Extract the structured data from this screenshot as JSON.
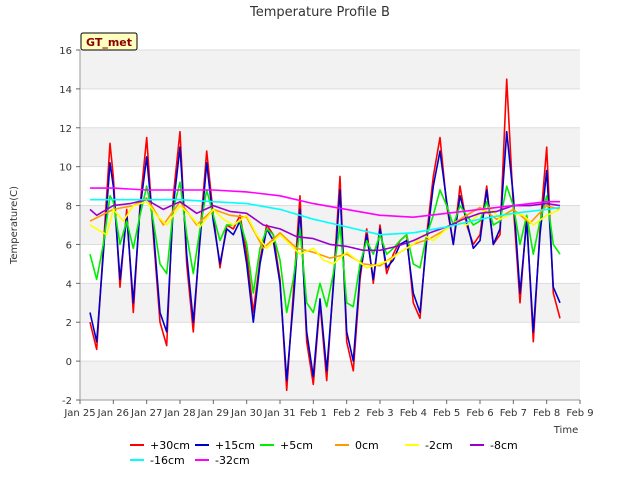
{
  "chart_data": {
    "type": "line",
    "title": "Temperature Profile B",
    "xlabel": "Time",
    "ylabel": "Temperature(C)",
    "ylim": [
      -2,
      16
    ],
    "xlim": [
      0,
      15
    ],
    "yticks": [
      -2,
      0,
      2,
      4,
      6,
      8,
      10,
      12,
      14,
      16
    ],
    "xticks": [
      {
        "x": 0,
        "label": "Jan 25"
      },
      {
        "x": 1,
        "label": "Jan 26"
      },
      {
        "x": 2,
        "label": "Jan 27"
      },
      {
        "x": 3,
        "label": "Jan 28"
      },
      {
        "x": 4,
        "label": "Jan 29"
      },
      {
        "x": 5,
        "label": "Jan 30"
      },
      {
        "x": 6,
        "label": "Jan 31"
      },
      {
        "x": 7,
        "label": "Feb 1"
      },
      {
        "x": 8,
        "label": "Feb 2"
      },
      {
        "x": 9,
        "label": "Feb 3"
      },
      {
        "x": 10,
        "label": "Feb 4"
      },
      {
        "x": 11,
        "label": "Feb 5"
      },
      {
        "x": 12,
        "label": "Feb 6"
      },
      {
        "x": 13,
        "label": "Feb 7"
      },
      {
        "x": 14,
        "label": "Feb 8"
      },
      {
        "x": 15,
        "label": "Feb 9"
      }
    ],
    "grid": "horizontal bands",
    "badge": "GT_met",
    "legend_position": "bottom",
    "series": [
      {
        "name": "+30cm",
        "color": "#ff0000",
        "x": [
          0.3,
          0.5,
          0.7,
          0.9,
          1.0,
          1.2,
          1.4,
          1.6,
          1.8,
          2.0,
          2.2,
          2.4,
          2.6,
          2.8,
          3.0,
          3.2,
          3.4,
          3.6,
          3.8,
          4.0,
          4.2,
          4.4,
          4.6,
          4.8,
          5.0,
          5.2,
          5.4,
          5.6,
          5.8,
          6.0,
          6.2,
          6.4,
          6.6,
          6.8,
          7.0,
          7.2,
          7.4,
          7.6,
          7.8,
          8.0,
          8.2,
          8.4,
          8.6,
          8.8,
          9.0,
          9.2,
          9.4,
          9.6,
          9.8,
          10.0,
          10.2,
          10.4,
          10.6,
          10.8,
          11.0,
          11.2,
          11.4,
          11.6,
          11.8,
          12.0,
          12.2,
          12.4,
          12.6,
          12.8,
          13.0,
          13.2,
          13.4,
          13.6,
          13.8,
          14.0,
          14.2,
          14.4
        ],
        "y": [
          2.0,
          0.6,
          5.8,
          11.2,
          9.5,
          3.8,
          7.8,
          2.5,
          8.0,
          11.5,
          6.5,
          2.0,
          0.8,
          8.5,
          11.8,
          5.0,
          1.5,
          6.5,
          10.8,
          7.5,
          4.8,
          7.0,
          6.8,
          7.5,
          5.5,
          2.5,
          5.2,
          7.0,
          6.5,
          4.2,
          -1.5,
          3.5,
          8.5,
          1.0,
          -1.2,
          3.0,
          -1.0,
          4.0,
          9.5,
          1.0,
          -0.5,
          4.2,
          6.8,
          4.0,
          7.0,
          4.5,
          5.5,
          6.2,
          6.5,
          3.0,
          2.2,
          6.5,
          9.5,
          11.5,
          8.0,
          6.0,
          9.0,
          7.0,
          6.0,
          6.5,
          9.0,
          6.0,
          6.5,
          14.5,
          8.0,
          3.0,
          7.5,
          1.0,
          6.8,
          11.0,
          3.5,
          2.2
        ]
      },
      {
        "name": "+15cm",
        "color": "#0000cc",
        "x": [
          0.3,
          0.5,
          0.7,
          0.9,
          1.0,
          1.2,
          1.4,
          1.6,
          1.8,
          2.0,
          2.2,
          2.4,
          2.6,
          2.8,
          3.0,
          3.2,
          3.4,
          3.6,
          3.8,
          4.0,
          4.2,
          4.4,
          4.6,
          4.8,
          5.0,
          5.2,
          5.4,
          5.6,
          5.8,
          6.0,
          6.2,
          6.4,
          6.6,
          6.8,
          7.0,
          7.2,
          7.4,
          7.6,
          7.8,
          8.0,
          8.2,
          8.4,
          8.6,
          8.8,
          9.0,
          9.2,
          9.4,
          9.6,
          9.8,
          10.0,
          10.2,
          10.4,
          10.6,
          10.8,
          11.0,
          11.2,
          11.4,
          11.6,
          11.8,
          12.0,
          12.2,
          12.4,
          12.6,
          12.8,
          13.0,
          13.2,
          13.4,
          13.6,
          13.8,
          14.0,
          14.2,
          14.4
        ],
        "y": [
          2.5,
          1.0,
          5.5,
          10.2,
          9.0,
          4.2,
          7.5,
          3.0,
          7.8,
          10.5,
          6.8,
          2.5,
          1.5,
          8.0,
          11.0,
          5.5,
          2.0,
          6.2,
          10.2,
          7.2,
          5.0,
          6.8,
          6.5,
          7.2,
          5.0,
          2.0,
          5.0,
          6.8,
          6.2,
          4.0,
          -1.0,
          3.0,
          7.8,
          1.5,
          -0.8,
          3.2,
          -0.5,
          3.8,
          8.8,
          1.5,
          0.0,
          4.5,
          6.5,
          4.2,
          6.8,
          4.8,
          5.2,
          6.0,
          6.2,
          3.5,
          2.5,
          6.2,
          9.0,
          10.8,
          8.2,
          6.0,
          8.5,
          7.2,
          5.8,
          6.2,
          8.8,
          6.0,
          6.8,
          11.8,
          8.5,
          3.5,
          7.2,
          1.5,
          6.5,
          9.8,
          3.8,
          3.0
        ]
      },
      {
        "name": "+5cm",
        "color": "#00ee00",
        "x": [
          0.3,
          0.5,
          0.7,
          0.9,
          1.0,
          1.2,
          1.4,
          1.6,
          1.8,
          2.0,
          2.2,
          2.4,
          2.6,
          2.8,
          3.0,
          3.2,
          3.4,
          3.6,
          3.8,
          4.0,
          4.2,
          4.4,
          4.6,
          4.8,
          5.0,
          5.2,
          5.4,
          5.6,
          5.8,
          6.0,
          6.2,
          6.4,
          6.6,
          6.8,
          7.0,
          7.2,
          7.4,
          7.6,
          7.8,
          8.0,
          8.2,
          8.4,
          8.6,
          8.8,
          9.0,
          9.2,
          9.4,
          9.6,
          9.8,
          10.0,
          10.2,
          10.4,
          10.6,
          10.8,
          11.0,
          11.2,
          11.4,
          11.6,
          11.8,
          12.0,
          12.2,
          12.4,
          12.6,
          12.8,
          13.0,
          13.2,
          13.4,
          13.6,
          13.8,
          14.0,
          14.2,
          14.4
        ],
        "y": [
          5.5,
          4.2,
          6.0,
          8.5,
          8.2,
          6.0,
          7.2,
          5.8,
          7.5,
          9.0,
          7.2,
          5.0,
          4.5,
          7.8,
          9.2,
          6.5,
          4.5,
          6.8,
          8.8,
          7.5,
          6.2,
          7.0,
          7.0,
          7.2,
          6.0,
          3.5,
          5.8,
          6.8,
          6.5,
          5.2,
          2.5,
          4.2,
          6.8,
          3.0,
          2.5,
          4.0,
          2.8,
          4.5,
          7.0,
          3.0,
          2.8,
          5.0,
          6.2,
          5.5,
          6.5,
          5.5,
          5.8,
          6.2,
          6.5,
          5.0,
          4.8,
          6.5,
          7.5,
          8.8,
          8.0,
          7.0,
          8.0,
          7.5,
          7.0,
          7.2,
          8.2,
          7.0,
          7.2,
          9.0,
          8.0,
          6.0,
          7.5,
          5.5,
          7.2,
          8.5,
          6.0,
          5.5
        ]
      },
      {
        "name": "0cm",
        "color": "#ff9900",
        "x": [
          0.3,
          1.0,
          1.6,
          2.0,
          2.5,
          3.0,
          3.5,
          4.0,
          4.5,
          5.0,
          5.5,
          6.0,
          6.5,
          7.0,
          7.5,
          8.0,
          8.5,
          9.0,
          9.5,
          10.0,
          10.5,
          11.0,
          11.5,
          12.0,
          12.5,
          13.0,
          13.5,
          14.0,
          14.4
        ],
        "y": [
          7.2,
          7.8,
          8.0,
          8.4,
          7.0,
          8.2,
          7.0,
          7.8,
          7.5,
          7.4,
          5.8,
          6.6,
          5.8,
          5.6,
          5.3,
          5.5,
          5.0,
          4.9,
          5.5,
          6.0,
          6.3,
          6.8,
          7.4,
          7.9,
          7.3,
          7.8,
          7.1,
          8.0,
          7.8
        ]
      },
      {
        "name": "-2cm",
        "color": "#ffff00",
        "x": [
          0.3,
          0.5,
          0.8,
          1.0,
          1.3,
          1.6,
          2.0,
          2.3,
          2.6,
          3.0,
          3.3,
          3.6,
          4.0,
          4.3,
          4.6,
          5.0,
          5.3,
          5.6,
          6.0,
          6.3,
          6.6,
          7.0,
          7.3,
          7.6,
          8.0,
          8.3,
          8.6,
          9.0,
          9.3,
          9.6,
          10.0,
          10.3,
          10.6,
          11.0,
          11.3,
          11.6,
          12.0,
          12.3,
          12.6,
          13.0,
          13.3,
          13.6,
          14.0,
          14.4
        ],
        "y": [
          7.0,
          6.8,
          6.5,
          7.8,
          7.2,
          8.0,
          8.2,
          7.5,
          7.0,
          8.0,
          7.5,
          6.9,
          7.8,
          7.3,
          7.0,
          7.5,
          6.5,
          5.8,
          6.5,
          6.0,
          5.5,
          5.8,
          5.2,
          5.0,
          5.6,
          5.2,
          4.8,
          5.0,
          5.2,
          5.6,
          6.0,
          6.5,
          6.2,
          6.8,
          7.2,
          7.0,
          7.6,
          7.9,
          7.3,
          7.6,
          7.5,
          7.0,
          7.5,
          7.8
        ]
      },
      {
        "name": "-8cm",
        "color": "#9900cc",
        "x": [
          0.3,
          0.5,
          1.0,
          1.5,
          2.0,
          2.5,
          3.0,
          3.5,
          4.0,
          4.5,
          5.0,
          5.5,
          6.0,
          6.5,
          7.0,
          7.5,
          8.0,
          8.5,
          9.0,
          9.5,
          10.0,
          10.5,
          11.0,
          11.5,
          12.0,
          12.5,
          13.0,
          13.5,
          14.0,
          14.4
        ],
        "y": [
          7.8,
          7.5,
          8.0,
          8.1,
          8.3,
          7.8,
          8.2,
          7.6,
          8.0,
          7.7,
          7.6,
          7.0,
          6.8,
          6.4,
          6.3,
          6.0,
          5.9,
          5.7,
          5.7,
          5.9,
          6.2,
          6.6,
          6.9,
          7.3,
          7.6,
          7.7,
          8.0,
          8.0,
          8.1,
          8.0
        ]
      },
      {
        "name": "-16cm",
        "color": "#00ffff",
        "x": [
          0.3,
          1.0,
          2.0,
          3.0,
          4.0,
          5.0,
          6.0,
          7.0,
          8.0,
          9.0,
          10.0,
          11.0,
          12.0,
          13.0,
          14.0,
          14.4
        ],
        "y": [
          8.3,
          8.3,
          8.3,
          8.3,
          8.2,
          8.1,
          7.8,
          7.3,
          6.9,
          6.5,
          6.6,
          6.9,
          7.3,
          7.6,
          7.8,
          7.9
        ]
      },
      {
        "name": "-32cm",
        "color": "#ff00ff",
        "x": [
          0.3,
          1.0,
          2.0,
          3.0,
          4.0,
          5.0,
          6.0,
          7.0,
          8.0,
          9.0,
          10.0,
          11.0,
          12.0,
          13.0,
          14.0,
          14.4
        ],
        "y": [
          8.9,
          8.9,
          8.8,
          8.8,
          8.8,
          8.7,
          8.5,
          8.1,
          7.8,
          7.5,
          7.4,
          7.6,
          7.8,
          8.0,
          8.2,
          8.2
        ]
      }
    ]
  }
}
